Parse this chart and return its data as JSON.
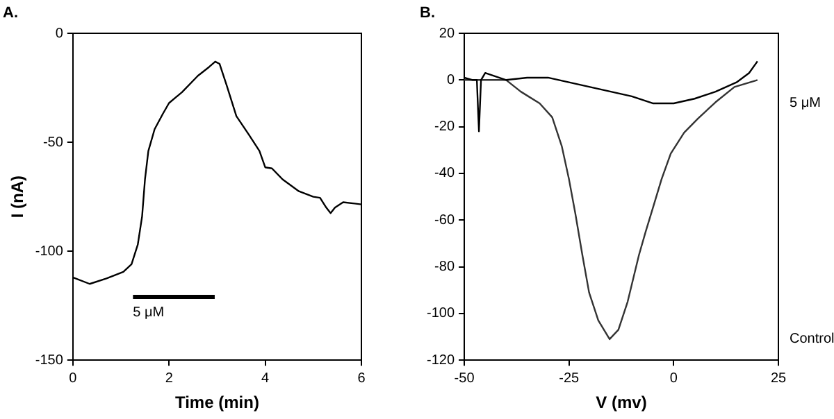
{
  "chart_data": [
    {
      "type": "line",
      "title": "A.",
      "xlabel": "Time (min)",
      "ylabel": "I (nA)",
      "xlim": [
        0,
        6
      ],
      "xticks": [
        0,
        2,
        4,
        6
      ],
      "ylim": [
        -150,
        0
      ],
      "yticks": [
        -150,
        -100,
        -50,
        0
      ],
      "grid": false,
      "legend": false,
      "marker": "none",
      "line_style": "solid",
      "series": [
        {
          "name": "5 μM",
          "color": "#000000",
          "x": [
            1.25,
            2.95
          ],
          "values": [
            -121,
            -121
          ]
        },
        {
          "color": "#000000",
          "x": [
            0,
            0.35,
            0.7,
            1.05,
            1.22,
            1.35,
            1.44,
            1.5,
            1.57,
            1.7,
            1.87,
            2.0,
            2.27,
            2.6,
            2.83,
            2.96,
            3.05,
            3.2,
            3.4,
            3.66,
            3.88,
            4.0,
            4.14,
            4.36,
            4.7,
            5.0,
            5.14,
            5.27,
            5.36,
            5.45,
            5.62,
            6.0
          ],
          "values": [
            -112,
            -115,
            -112.5,
            -109.5,
            -106,
            -97,
            -84,
            -67,
            -54,
            -44,
            -37,
            -32,
            -27,
            -19.5,
            -15.5,
            -13,
            -14,
            -24,
            -38,
            -46.5,
            -54,
            -61.5,
            -62,
            -67,
            -72.5,
            -75,
            -75.5,
            -80,
            -82.5,
            -80,
            -77.5,
            -78.5
          ]
        }
      ]
    },
    {
      "type": "line",
      "title": "B.",
      "xlabel": "V (mv)",
      "xlim": [
        -50,
        25
      ],
      "xticks": [
        -50,
        -25,
        0,
        25
      ],
      "ylim": [
        -120,
        20
      ],
      "yticks": [
        -120,
        -100,
        -80,
        -60,
        -40,
        -20,
        0,
        20
      ],
      "grid": false,
      "legend": false,
      "marker": "none",
      "line_style": "solid",
      "series": [
        {
          "name": "5 μM",
          "color": "#000000",
          "x": [
            -50,
            -48,
            -47,
            -46.5,
            -46,
            -45,
            -40,
            -35,
            -30,
            -25,
            -20,
            -15,
            -10,
            -5,
            0,
            5,
            10,
            15,
            18,
            20
          ],
          "values": [
            1,
            0,
            0,
            -22,
            0,
            3,
            0,
            1,
            1,
            -1,
            -3,
            -5,
            -7,
            -10,
            -10,
            -8,
            -5,
            -1,
            3,
            8
          ]
        },
        {
          "name": "Control",
          "color": "#333333",
          "x": [
            -50,
            -45,
            -40,
            -36.5,
            -32,
            -29,
            -26.7,
            -25,
            -23.5,
            -21.8,
            -20.2,
            -18,
            -15.3,
            -13.2,
            -11,
            -8.3,
            -6.7,
            -5,
            -2.9,
            -0.7,
            2.5,
            5.8,
            10,
            14.5,
            20
          ],
          "values": [
            0,
            0,
            0,
            -5,
            -10,
            -16,
            -28.5,
            -42.5,
            -57,
            -75,
            -91,
            -103,
            -111,
            -107,
            -95,
            -75,
            -65,
            -55,
            -42.5,
            -31.5,
            -22.5,
            -16.5,
            -9.5,
            -3,
            0
          ]
        }
      ]
    }
  ]
}
